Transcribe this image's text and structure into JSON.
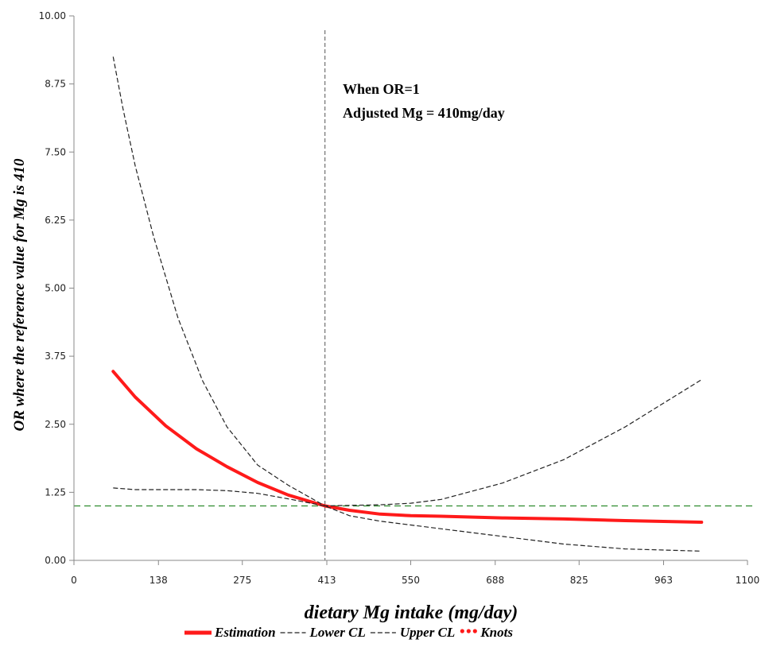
{
  "chart_data": {
    "type": "line",
    "xlabel": "dietary Mg intake (mg/day)",
    "ylabel": "OR where the reference value for Mg is 410",
    "xlim": [
      0,
      1100
    ],
    "ylim": [
      0,
      10
    ],
    "x_ticks": [
      0,
      138,
      275,
      413,
      550,
      688,
      825,
      963,
      1100
    ],
    "x_tick_labels": [
      "0",
      "138",
      "275",
      "413",
      "550",
      "688",
      "825",
      "963",
      "1100"
    ],
    "y_ticks": [
      0,
      1.25,
      2.5,
      3.75,
      5,
      6.25,
      7.5,
      8.75,
      10
    ],
    "y_tick_labels": [
      "0.00",
      "1.25",
      "2.50",
      "3.75",
      "5.00",
      "6.25",
      "7.50",
      "8.75",
      "10.00"
    ],
    "grid": false,
    "legend_position": "bottom",
    "reference_lines": {
      "vertical_x": 410,
      "horizontal_y": 1,
      "vertical_color": "#555555",
      "horizontal_color": "#2e8b2e"
    },
    "annotations": [
      "When OR=1",
      "Adjusted Mg = 410mg/day"
    ],
    "series": [
      {
        "name": "Estimation",
        "style": "solid-thick",
        "color": "#ff1a1a",
        "x": [
          64,
          100,
          150,
          200,
          250,
          300,
          350,
          410,
          450,
          500,
          550,
          600,
          700,
          800,
          900,
          1025
        ],
        "y": [
          3.47,
          3.0,
          2.47,
          2.05,
          1.72,
          1.43,
          1.2,
          1.0,
          0.92,
          0.85,
          0.82,
          0.81,
          0.78,
          0.76,
          0.73,
          0.7
        ]
      },
      {
        "name": "Lower CL",
        "style": "dashed",
        "color": "#222222",
        "x": [
          64,
          100,
          150,
          200,
          250,
          300,
          350,
          410,
          450,
          500,
          550,
          600,
          700,
          800,
          900,
          1025
        ],
        "y": [
          1.33,
          1.3,
          1.3,
          1.3,
          1.28,
          1.23,
          1.13,
          1.0,
          0.82,
          0.72,
          0.65,
          0.58,
          0.44,
          0.3,
          0.21,
          0.17
        ]
      },
      {
        "name": "Upper CL",
        "style": "dashed",
        "color": "#222222",
        "x": [
          64,
          80,
          100,
          130,
          170,
          210,
          250,
          300,
          350,
          410,
          450,
          500,
          550,
          600,
          700,
          800,
          900,
          1025
        ],
        "y": [
          9.25,
          8.3,
          7.25,
          5.95,
          4.45,
          3.3,
          2.45,
          1.75,
          1.38,
          1.0,
          1.01,
          1.02,
          1.05,
          1.12,
          1.42,
          1.85,
          2.45,
          3.32
        ]
      },
      {
        "name": "Knots",
        "style": "dots",
        "color": "#ff1a1a",
        "x": [],
        "y": []
      }
    ]
  }
}
